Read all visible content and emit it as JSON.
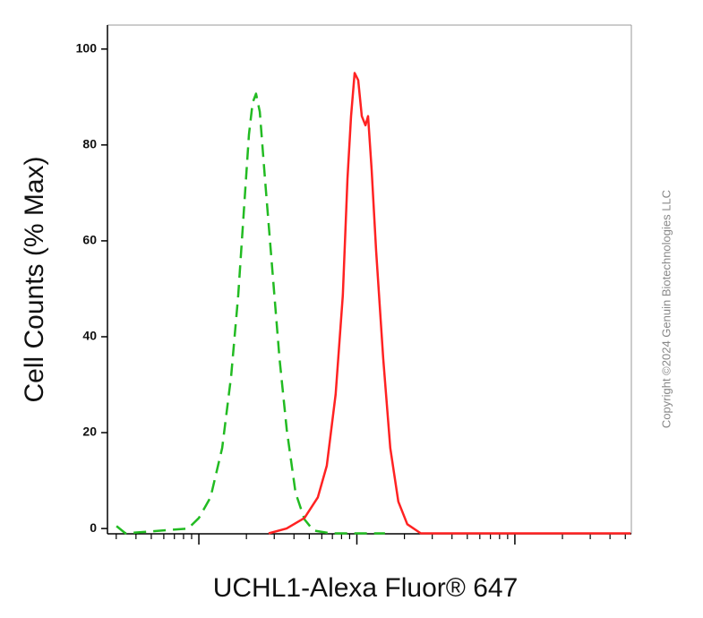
{
  "chart_data": {
    "type": "line",
    "x_label": "UCHL1-Alexa Fluor® 647",
    "y_label": "Cell Counts (% Max)",
    "copyright": "Copyright ©2024 Genuin Biotechnologies LLC",
    "xscale": "log",
    "xlim": [
      264,
      546000
    ],
    "xticks": [
      1000,
      10000,
      100000
    ],
    "xminorticks": [
      300,
      400,
      500,
      600,
      700,
      800,
      900,
      2000,
      3000,
      4000,
      5000,
      6000,
      7000,
      8000,
      9000,
      20000,
      30000,
      40000,
      50000,
      60000,
      70000,
      80000,
      90000,
      200000,
      300000,
      400000,
      500000
    ],
    "ylim": [
      -1.1,
      105
    ],
    "yticks": [
      0,
      20,
      40,
      60,
      80,
      100
    ],
    "series": [
      {
        "color": "#22bb22",
        "dash": true,
        "x": [
          301,
          343,
          855,
          1000,
          1185,
          1404,
          1600,
          1775,
          1920,
          2075,
          2190,
          2300,
          2430,
          2620,
          2915,
          3240,
          3600,
          4090,
          4660,
          5310,
          6880,
          15070
        ],
        "values": [
          0.5,
          -1,
          0,
          2.2,
          6.5,
          16.8,
          31.8,
          48.6,
          65.4,
          82.2,
          88.8,
          90.7,
          86.9,
          72.9,
          54.2,
          35.5,
          20.6,
          7.5,
          1.9,
          -0.4,
          -1,
          -1
        ]
      },
      {
        "color": "#ff2222",
        "dash": false,
        "x": [
          2767,
          3590,
          4660,
          5660,
          6450,
          7340,
          8150,
          8720,
          9190,
          9680,
          10200,
          10750,
          11330,
          11780,
          12410,
          13240,
          14670,
          16270,
          18300,
          20860,
          25400,
          540000
        ],
        "values": [
          -1,
          0,
          2.2,
          6.5,
          13.1,
          28,
          48.6,
          72.9,
          86,
          95,
          93.5,
          86,
          84.1,
          86,
          74.8,
          57.9,
          35.5,
          16.8,
          5.6,
          0.9,
          -1,
          -1
        ]
      }
    ]
  }
}
